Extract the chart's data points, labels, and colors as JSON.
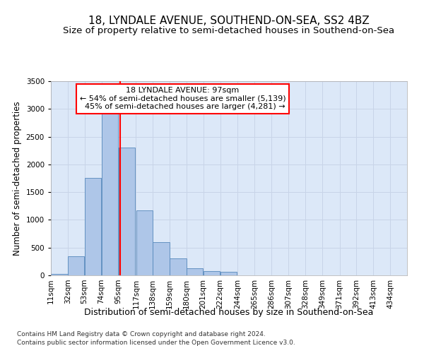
{
  "title": "18, LYNDALE AVENUE, SOUTHEND-ON-SEA, SS2 4BZ",
  "subtitle": "Size of property relative to semi-detached houses in Southend-on-Sea",
  "xlabel": "Distribution of semi-detached houses by size in Southend-on-Sea",
  "ylabel": "Number of semi-detached properties",
  "footnote1": "Contains HM Land Registry data © Crown copyright and database right 2024.",
  "footnote2": "Contains public sector information licensed under the Open Government Licence v3.0.",
  "property_label": "18 LYNDALE AVENUE: 97sqm",
  "pct_smaller": 54,
  "count_smaller": 5139,
  "pct_larger": 45,
  "count_larger": 4281,
  "bin_edges": [
    11,
    32,
    53,
    74,
    95,
    117,
    138,
    159,
    180,
    201,
    222,
    244,
    265,
    286,
    307,
    328,
    349,
    371,
    392,
    413,
    434
  ],
  "bin_labels": [
    "11sqm",
    "32sqm",
    "53sqm",
    "74sqm",
    "95sqm",
    "117sqm",
    "138sqm",
    "159sqm",
    "180sqm",
    "201sqm",
    "222sqm",
    "244sqm",
    "265sqm",
    "286sqm",
    "307sqm",
    "328sqm",
    "349sqm",
    "371sqm",
    "392sqm",
    "413sqm",
    "434sqm"
  ],
  "bar_heights": [
    30,
    350,
    1750,
    2950,
    2300,
    1175,
    600,
    305,
    130,
    75,
    60,
    0,
    0,
    0,
    0,
    0,
    0,
    0,
    0,
    0
  ],
  "bar_color": "#aec6e8",
  "bar_edge_color": "#5588bb",
  "vline_color": "red",
  "vline_x": 97,
  "ylim": [
    0,
    3500
  ],
  "yticks": [
    0,
    500,
    1000,
    1500,
    2000,
    2500,
    3000,
    3500
  ],
  "grid_color": "#c8d4e8",
  "bg_color": "#dce8f8",
  "title_fontsize": 11,
  "subtitle_fontsize": 9.5,
  "xlabel_fontsize": 9,
  "ylabel_fontsize": 8.5,
  "tick_fontsize": 7.5,
  "annot_fontsize": 8,
  "footnote_fontsize": 6.5
}
